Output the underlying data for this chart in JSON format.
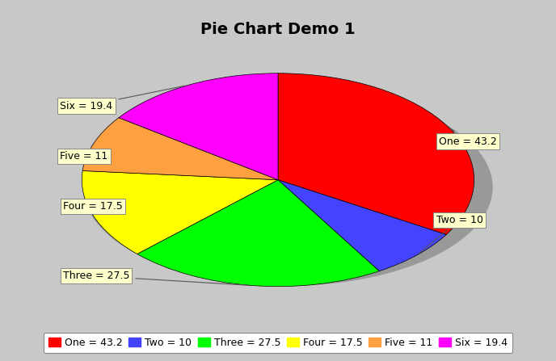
{
  "title": "Pie Chart Demo 1",
  "labels": [
    "One",
    "Two",
    "Three",
    "Four",
    "Five",
    "Six"
  ],
  "values": [
    43.2,
    10,
    27.5,
    17.5,
    11,
    19.4
  ],
  "colors": [
    "#FF0000",
    "#4444FF",
    "#00FF00",
    "#FFFF00",
    "#FFA040",
    "#FF00FF"
  ],
  "background_color": "#C8C8C8",
  "plot_bg_color": "#FFFFFF",
  "label_box_color": "#FFFFCC",
  "title_fontsize": 14,
  "legend_fontsize": 9,
  "label_fontsize": 9,
  "startangle": 90,
  "shadow_color": "#999999"
}
